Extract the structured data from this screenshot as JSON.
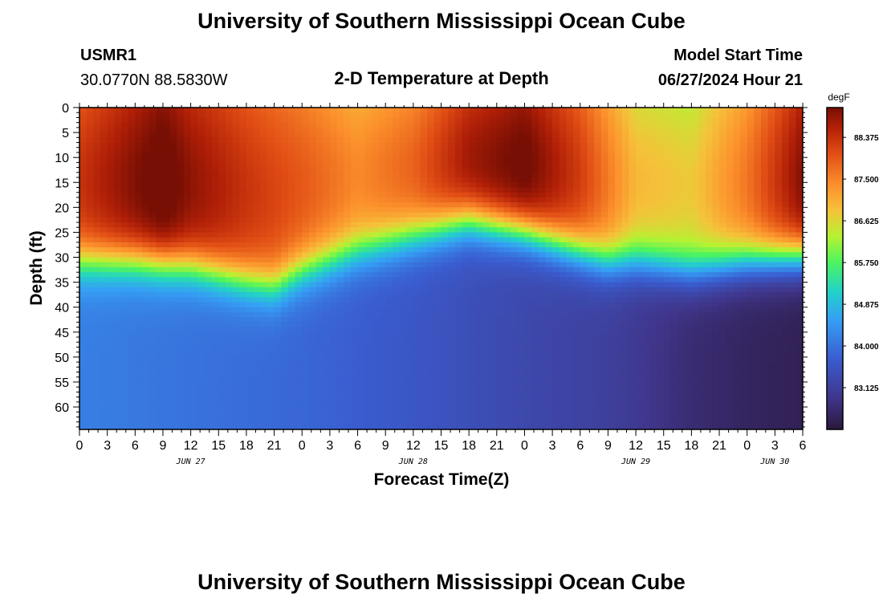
{
  "page": {
    "title": "University of Southern Mississippi Ocean Cube",
    "footer_title": "University of Southern Mississippi Ocean Cube",
    "station_id": "USMR1",
    "coordinates": "30.0770N  88.5830W",
    "subtitle": "2-D Temperature at Depth",
    "model_start_label": "Model Start Time",
    "model_start_value": "06/27/2024 Hour 21"
  },
  "chart_data": {
    "type": "heatmap",
    "title": "2-D Temperature at Depth",
    "xlabel": "Forecast Time(Z)",
    "ylabel": "Depth (ft)",
    "x_units": "hours from 2024-06-27 00Z",
    "xlim": [
      0,
      78
    ],
    "ylim": [
      0,
      64.5
    ],
    "x_ticks": [
      0,
      3,
      6,
      9,
      12,
      15,
      18,
      21,
      24,
      27,
      30,
      33,
      36,
      39,
      42,
      45,
      48,
      51,
      54,
      57,
      60,
      63,
      66,
      69,
      72,
      75,
      78
    ],
    "x_tick_labels": [
      "0",
      "3",
      "6",
      "9",
      "12",
      "15",
      "18",
      "21",
      "0",
      "3",
      "6",
      "9",
      "12",
      "15",
      "18",
      "21",
      "0",
      "3",
      "6",
      "9",
      "12",
      "15",
      "18",
      "21",
      "0",
      "3",
      "6"
    ],
    "x_date_labels": [
      {
        "label": "JUN 27",
        "at": 12
      },
      {
        "label": "JUN 28",
        "at": 36
      },
      {
        "label": "JUN 29",
        "at": 60
      },
      {
        "label": "JUN 30",
        "at": 75
      }
    ],
    "y_ticks": [
      0,
      5,
      10,
      15,
      20,
      25,
      30,
      35,
      40,
      45,
      50,
      55,
      60
    ],
    "y_tick_labels": [
      "0",
      "5",
      "10",
      "15",
      "20",
      "25",
      "30",
      "35",
      "40",
      "45",
      "50",
      "55",
      "60"
    ],
    "colorbar": {
      "units": "degF",
      "min": 82.25,
      "max": 89.0,
      "ticks": [
        83.125,
        84.0,
        84.875,
        85.75,
        86.625,
        87.5,
        88.375
      ],
      "tick_labels": [
        "83.125",
        "84.000",
        "84.875",
        "85.750",
        "86.625",
        "87.500",
        "88.375"
      ]
    },
    "series": [
      {
        "name": "surface_temp_degF",
        "x": [
          0,
          6,
          9,
          12,
          18,
          24,
          30,
          36,
          42,
          48,
          54,
          60,
          66,
          72,
          78
        ],
        "values": [
          88.0,
          88.6,
          88.9,
          88.5,
          88.0,
          87.6,
          87.1,
          87.5,
          88.4,
          88.8,
          87.9,
          86.6,
          86.4,
          87.3,
          88.6
        ]
      },
      {
        "name": "thermocline_depth_ft",
        "x": [
          0,
          6,
          12,
          18,
          21,
          24,
          30,
          36,
          42,
          48,
          54,
          57,
          60,
          66,
          72,
          78
        ],
        "values": [
          31,
          31,
          32,
          35,
          36,
          33,
          29,
          26,
          23,
          25,
          29,
          31,
          31,
          33,
          31,
          30
        ]
      },
      {
        "name": "bottom_temp_degF",
        "x": [
          0,
          12,
          24,
          36,
          48,
          56,
          60,
          66,
          72,
          78
        ],
        "values": [
          84.15,
          84.0,
          83.85,
          83.6,
          83.3,
          83.15,
          83.0,
          82.7,
          82.55,
          82.45
        ]
      }
    ]
  }
}
